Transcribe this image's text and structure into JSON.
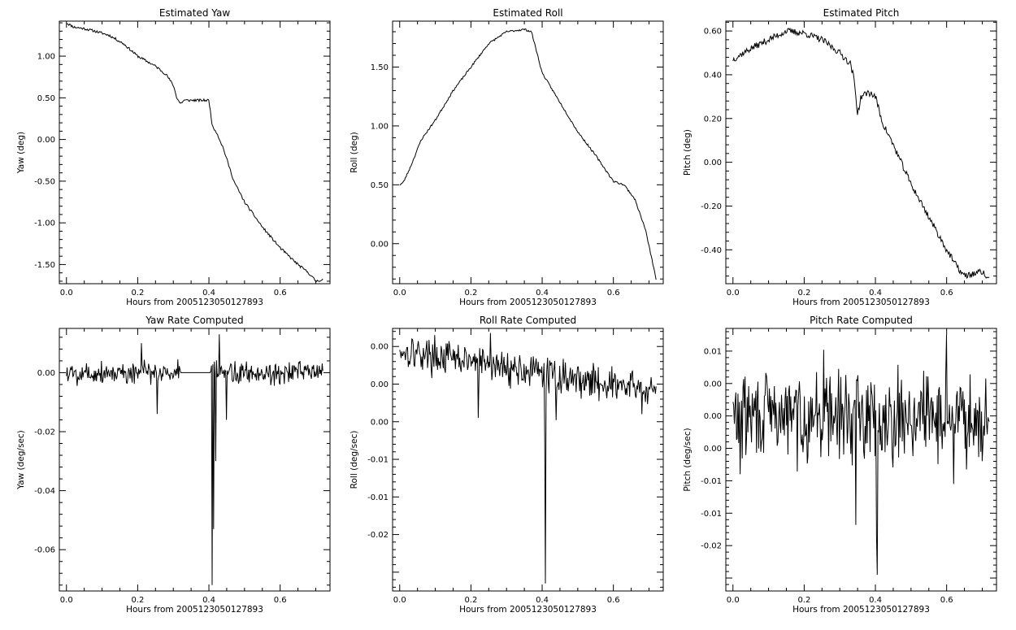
{
  "figure": {
    "background": "#ffffff",
    "line_color": "#000000"
  },
  "chart_data": [
    {
      "id": "yaw",
      "type": "line",
      "title": "Estimated Yaw",
      "xlabel": "Hours from 20051230501278​93",
      "ylabel": "Yaw (deg)",
      "xlim": [
        -0.02,
        0.74
      ],
      "ylim": [
        -1.73,
        1.42
      ],
      "x_ticks": [
        "0.0",
        "0.2",
        "0.4",
        "0.6"
      ],
      "x_tick_values": [
        0.0,
        0.2,
        0.4,
        0.6
      ],
      "y_ticks": [
        "1.00",
        "0.50",
        "0.00",
        "-0.50",
        "-1.00",
        "-1.50"
      ],
      "y_tick_values": [
        1.0,
        0.5,
        0.0,
        -0.5,
        -1.0,
        -1.5
      ],
      "x": [
        0.0,
        0.02,
        0.05,
        0.08,
        0.12,
        0.16,
        0.2,
        0.25,
        0.28,
        0.3,
        0.31,
        0.32,
        0.33,
        0.36,
        0.4,
        0.41,
        0.42,
        0.44,
        0.47,
        0.5,
        0.55,
        0.6,
        0.65,
        0.68,
        0.7,
        0.72
      ],
      "y": [
        1.4,
        1.35,
        1.33,
        1.3,
        1.25,
        1.15,
        1.0,
        0.88,
        0.78,
        0.65,
        0.5,
        0.43,
        0.47,
        0.47,
        0.47,
        0.15,
        0.1,
        -0.1,
        -0.5,
        -0.75,
        -1.05,
        -1.3,
        -1.5,
        -1.6,
        -1.7,
        -1.68
      ],
      "noise": 0.015,
      "seed": 11
    },
    {
      "id": "roll",
      "type": "line",
      "title": "Estimated Roll",
      "xlabel": "Hours from 20051230501278​93",
      "ylabel": "Roll (deg)",
      "xlim": [
        -0.02,
        0.74
      ],
      "ylim": [
        -0.34,
        1.89
      ],
      "x_ticks": [
        "0.0",
        "0.2",
        "0.4",
        "0.6"
      ],
      "x_tick_values": [
        0.0,
        0.2,
        0.4,
        0.6
      ],
      "y_ticks": [
        "1.50",
        "1.00",
        "0.50",
        "0.00"
      ],
      "y_tick_values": [
        1.5,
        1.0,
        0.5,
        0.0
      ],
      "x": [
        0.0,
        0.01,
        0.03,
        0.06,
        0.1,
        0.15,
        0.2,
        0.25,
        0.3,
        0.35,
        0.37,
        0.4,
        0.45,
        0.5,
        0.55,
        0.6,
        0.63,
        0.66,
        0.69,
        0.72
      ],
      "y": [
        0.5,
        0.52,
        0.65,
        0.88,
        1.05,
        1.3,
        1.5,
        1.7,
        1.8,
        1.82,
        1.8,
        1.45,
        1.2,
        0.95,
        0.75,
        0.53,
        0.5,
        0.38,
        0.12,
        -0.3
      ],
      "noise": 0.008,
      "seed": 23
    },
    {
      "id": "pitch",
      "type": "line",
      "title": "Estimated Pitch",
      "xlabel": "Hours from 20051230501278​93",
      "ylabel": "Pitch (deg)",
      "xlim": [
        -0.02,
        0.74
      ],
      "ylim": [
        -0.555,
        0.645
      ],
      "x_ticks": [
        "0.0",
        "0.2",
        "0.4",
        "0.6"
      ],
      "x_tick_values": [
        0.0,
        0.2,
        0.4,
        0.6
      ],
      "y_ticks": [
        "0.60",
        "0.40",
        "0.20",
        "0.00",
        "-0.20",
        "-0.40"
      ],
      "y_tick_values": [
        0.6,
        0.4,
        0.2,
        0.0,
        -0.2,
        -0.4
      ],
      "x": [
        0.0,
        0.05,
        0.1,
        0.15,
        0.2,
        0.25,
        0.3,
        0.33,
        0.34,
        0.35,
        0.36,
        0.38,
        0.4,
        0.42,
        0.45,
        0.5,
        0.55,
        0.6,
        0.63,
        0.65,
        0.7,
        0.72
      ],
      "y": [
        0.47,
        0.52,
        0.56,
        0.6,
        0.59,
        0.56,
        0.5,
        0.45,
        0.38,
        0.22,
        0.3,
        0.32,
        0.3,
        0.18,
        0.08,
        -0.1,
        -0.25,
        -0.4,
        -0.48,
        -0.52,
        -0.5,
        -0.54
      ],
      "noise": 0.015,
      "seed": 37
    },
    {
      "id": "yaw_rate",
      "type": "line",
      "title": "Yaw Rate Computed",
      "xlabel": "Hours from 20051230501278​93",
      "ylabel": "Yaw (deg/sec)",
      "xlim": [
        -0.02,
        0.74
      ],
      "ylim": [
        -0.074,
        0.015
      ],
      "x_ticks": [
        "0.0",
        "0.2",
        "0.4",
        "0.6"
      ],
      "x_tick_values": [
        0.0,
        0.2,
        0.4,
        0.6
      ],
      "y_ticks": [
        "0.00",
        "-0.02",
        "-0.04",
        "-0.06"
      ],
      "y_tick_values": [
        0.0,
        -0.02,
        -0.04,
        -0.06
      ],
      "n": 360,
      "x_range": [
        0.0,
        0.72
      ],
      "base": 0.0,
      "amp": 0.004,
      "flat_range": [
        0.32,
        0.405
      ],
      "spikes": [
        {
          "x": 0.41,
          "y": -0.072
        },
        {
          "x": 0.413,
          "y": -0.053
        },
        {
          "x": 0.43,
          "y": 0.013
        },
        {
          "x": 0.42,
          "y": -0.03
        },
        {
          "x": 0.255,
          "y": -0.014
        },
        {
          "x": 0.21,
          "y": 0.01
        },
        {
          "x": 0.45,
          "y": -0.016
        }
      ],
      "seed": 5
    },
    {
      "id": "roll_rate",
      "type": "line",
      "title": "Roll Rate Computed",
      "xlabel": "Hours from 20051230501278​93",
      "ylabel": "Roll (deg/sec)",
      "xlim": [
        -0.02,
        0.74
      ],
      "ylim": [
        -0.0275,
        0.0074
      ],
      "x_ticks": [
        "0.0",
        "0.2",
        "0.4",
        "0.6"
      ],
      "x_tick_values": [
        0.0,
        0.2,
        0.4,
        0.6
      ],
      "y_ticks": [
        "0.00",
        "0.00",
        "0.00",
        "-0.01",
        "-0.01",
        "-0.02"
      ],
      "y_tick_values": [
        0.005,
        0.0,
        -0.005,
        -0.01,
        -0.015,
        -0.02
      ],
      "n": 360,
      "x_range": [
        0.0,
        0.72
      ],
      "base": 0.0045,
      "base_end": -0.001,
      "amp": 0.0022,
      "flat_range": null,
      "spikes": [
        {
          "x": 0.41,
          "y": -0.0265
        },
        {
          "x": 0.408,
          "y": -0.0075
        },
        {
          "x": 0.255,
          "y": 0.0068
        },
        {
          "x": 0.035,
          "y": 0.006
        },
        {
          "x": 0.22,
          "y": -0.0045
        },
        {
          "x": 0.44,
          "y": -0.0048
        },
        {
          "x": 0.68,
          "y": -0.004
        }
      ],
      "seed": 17
    },
    {
      "id": "pitch_rate",
      "type": "line",
      "title": "Pitch Rate Computed",
      "xlabel": "Hours from 20051230501278​93",
      "ylabel": "Pitch (deg/sec)",
      "xlim": [
        -0.02,
        0.74
      ],
      "ylim": [
        -0.027,
        0.0135
      ],
      "x_ticks": [
        "0.0",
        "0.2",
        "0.4",
        "0.6"
      ],
      "x_tick_values": [
        0.0,
        0.2,
        0.4,
        0.6
      ],
      "y_ticks": [
        "0.01",
        "0.00",
        "0.00",
        "0.00",
        "-0.01",
        "-0.01",
        "-0.02"
      ],
      "y_tick_values": [
        0.01,
        0.005,
        0.0,
        -0.005,
        -0.01,
        -0.015,
        -0.02
      ],
      "n": 360,
      "x_range": [
        0.0,
        0.72
      ],
      "base": 0.0,
      "amp": 0.0065,
      "flat_range": null,
      "spikes": [
        {
          "x": 0.405,
          "y": -0.0245
        },
        {
          "x": 0.403,
          "y": -0.0185
        },
        {
          "x": 0.345,
          "y": -0.0168
        },
        {
          "x": 0.6,
          "y": 0.0125
        },
        {
          "x": 0.255,
          "y": 0.0102
        },
        {
          "x": 0.02,
          "y": -0.009
        },
        {
          "x": 0.62,
          "y": -0.0105
        }
      ],
      "seed": 29
    }
  ]
}
